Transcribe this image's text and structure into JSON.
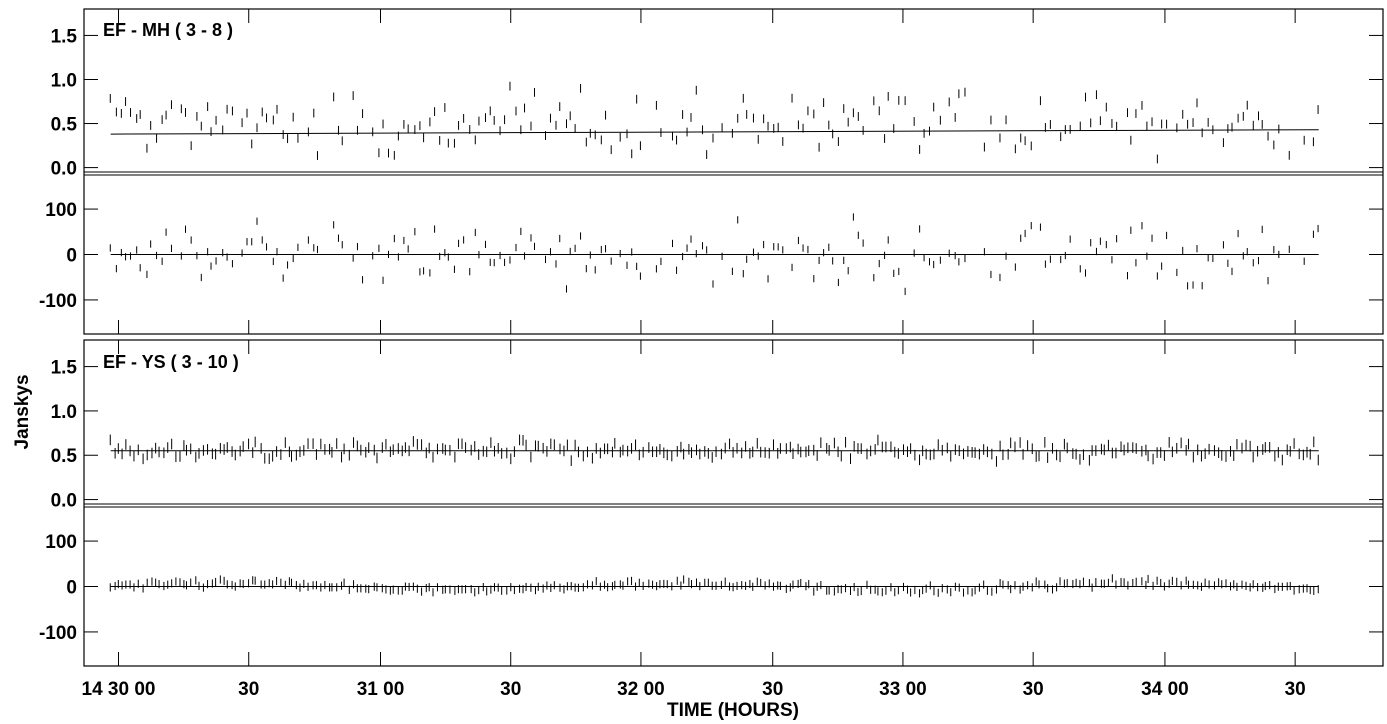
{
  "chart_data": {
    "type": "scatter",
    "xlabel": "TIME (HOURS)",
    "ylabel": "Janskys",
    "x_tick_labels": [
      "14 30 00",
      "30",
      "31 00",
      "30",
      "32 00",
      "30",
      "33 00",
      "30",
      "34 00",
      "30"
    ],
    "x_tick_hours": [
      14.5,
      14.5083,
      14.5167,
      14.525,
      14.5333,
      14.5417,
      14.55,
      14.5583,
      14.5667,
      14.575
    ],
    "xlim_hours": [
      14.4978,
      14.5806
    ],
    "baselines": [
      {
        "title": "EF - MH ( 3 - 8 )",
        "amplitude": {
          "ylim": [
            -0.05,
            1.8
          ],
          "y_tick_labels": [
            "1.5",
            "1.0",
            "0.5",
            "0.0"
          ],
          "y_tick_values": [
            1.5,
            1.0,
            0.5,
            0.0
          ],
          "model_start": 0.38,
          "model_end": 0.43,
          "points_mean": 0.5,
          "points_scatter": 0.28
        },
        "phase": {
          "ylim": [
            -175,
            175
          ],
          "y_tick_labels": [
            "100",
            "0",
            "-100"
          ],
          "y_tick_values": [
            100,
            0,
            -100
          ],
          "model_value": 0,
          "points_mean": 0,
          "points_scatter": 45
        }
      },
      {
        "title": "EF - YS ( 3 - 10 )",
        "amplitude": {
          "ylim": [
            -0.05,
            1.8
          ],
          "y_tick_labels": [
            "1.5",
            "1.0",
            "0.5",
            "0.0"
          ],
          "y_tick_values": [
            1.5,
            1.0,
            0.5,
            0.0
          ],
          "model_start": 0.55,
          "model_end": 0.55,
          "points_mean": 0.55,
          "points_scatter": 0.07
        },
        "phase": {
          "ylim": [
            -175,
            175
          ],
          "y_tick_labels": [
            "100",
            "0",
            "-100"
          ],
          "y_tick_values": [
            100,
            0,
            -100
          ],
          "model_value": 0,
          "points_mean": 0,
          "points_scatter": 12
        }
      }
    ]
  }
}
